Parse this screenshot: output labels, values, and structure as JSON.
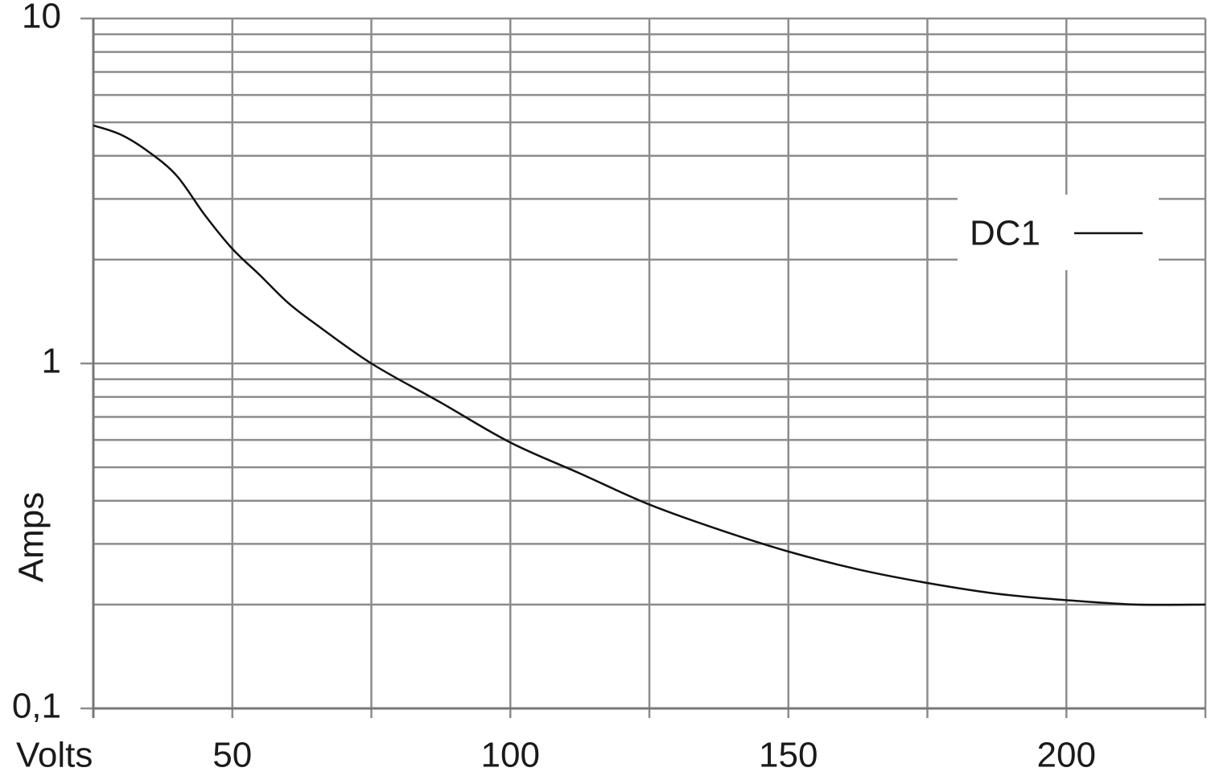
{
  "chart_data": {
    "type": "line",
    "x_label": "Volts",
    "y_label": "Amps",
    "x": [
      25,
      30,
      35,
      40,
      45,
      50,
      55,
      60,
      65,
      75,
      87.5,
      100,
      112.5,
      125,
      137.5,
      150,
      162.5,
      175,
      187.5,
      200,
      212.5,
      225
    ],
    "series": [
      {
        "name": "DC1",
        "color": "#111111",
        "values": [
          4.9,
          4.6,
          4.1,
          3.5,
          2.7,
          2.15,
          1.8,
          1.5,
          1.3,
          1.0,
          0.77,
          0.59,
          0.48,
          0.39,
          0.33,
          0.285,
          0.253,
          0.231,
          0.215,
          0.206,
          0.2,
          0.2
        ]
      }
    ],
    "xlim": [
      25,
      225
    ],
    "xticks": [
      50,
      100,
      150,
      200
    ],
    "xminorticks": [
      25,
      75,
      125,
      175,
      225
    ],
    "ylim": [
      0.1,
      10
    ],
    "y_scale": "log",
    "yticks": [
      {
        "value": 0.1,
        "label": "0,1"
      },
      1,
      10
    ],
    "yminorticks": [
      0.2,
      0.3,
      0.4,
      0.5,
      0.6,
      0.7,
      0.8,
      0.9,
      2,
      3,
      4,
      5,
      6,
      7,
      8,
      9
    ],
    "grid": true,
    "grid_color": "#8c8c8c",
    "legend_position": "upper right"
  }
}
